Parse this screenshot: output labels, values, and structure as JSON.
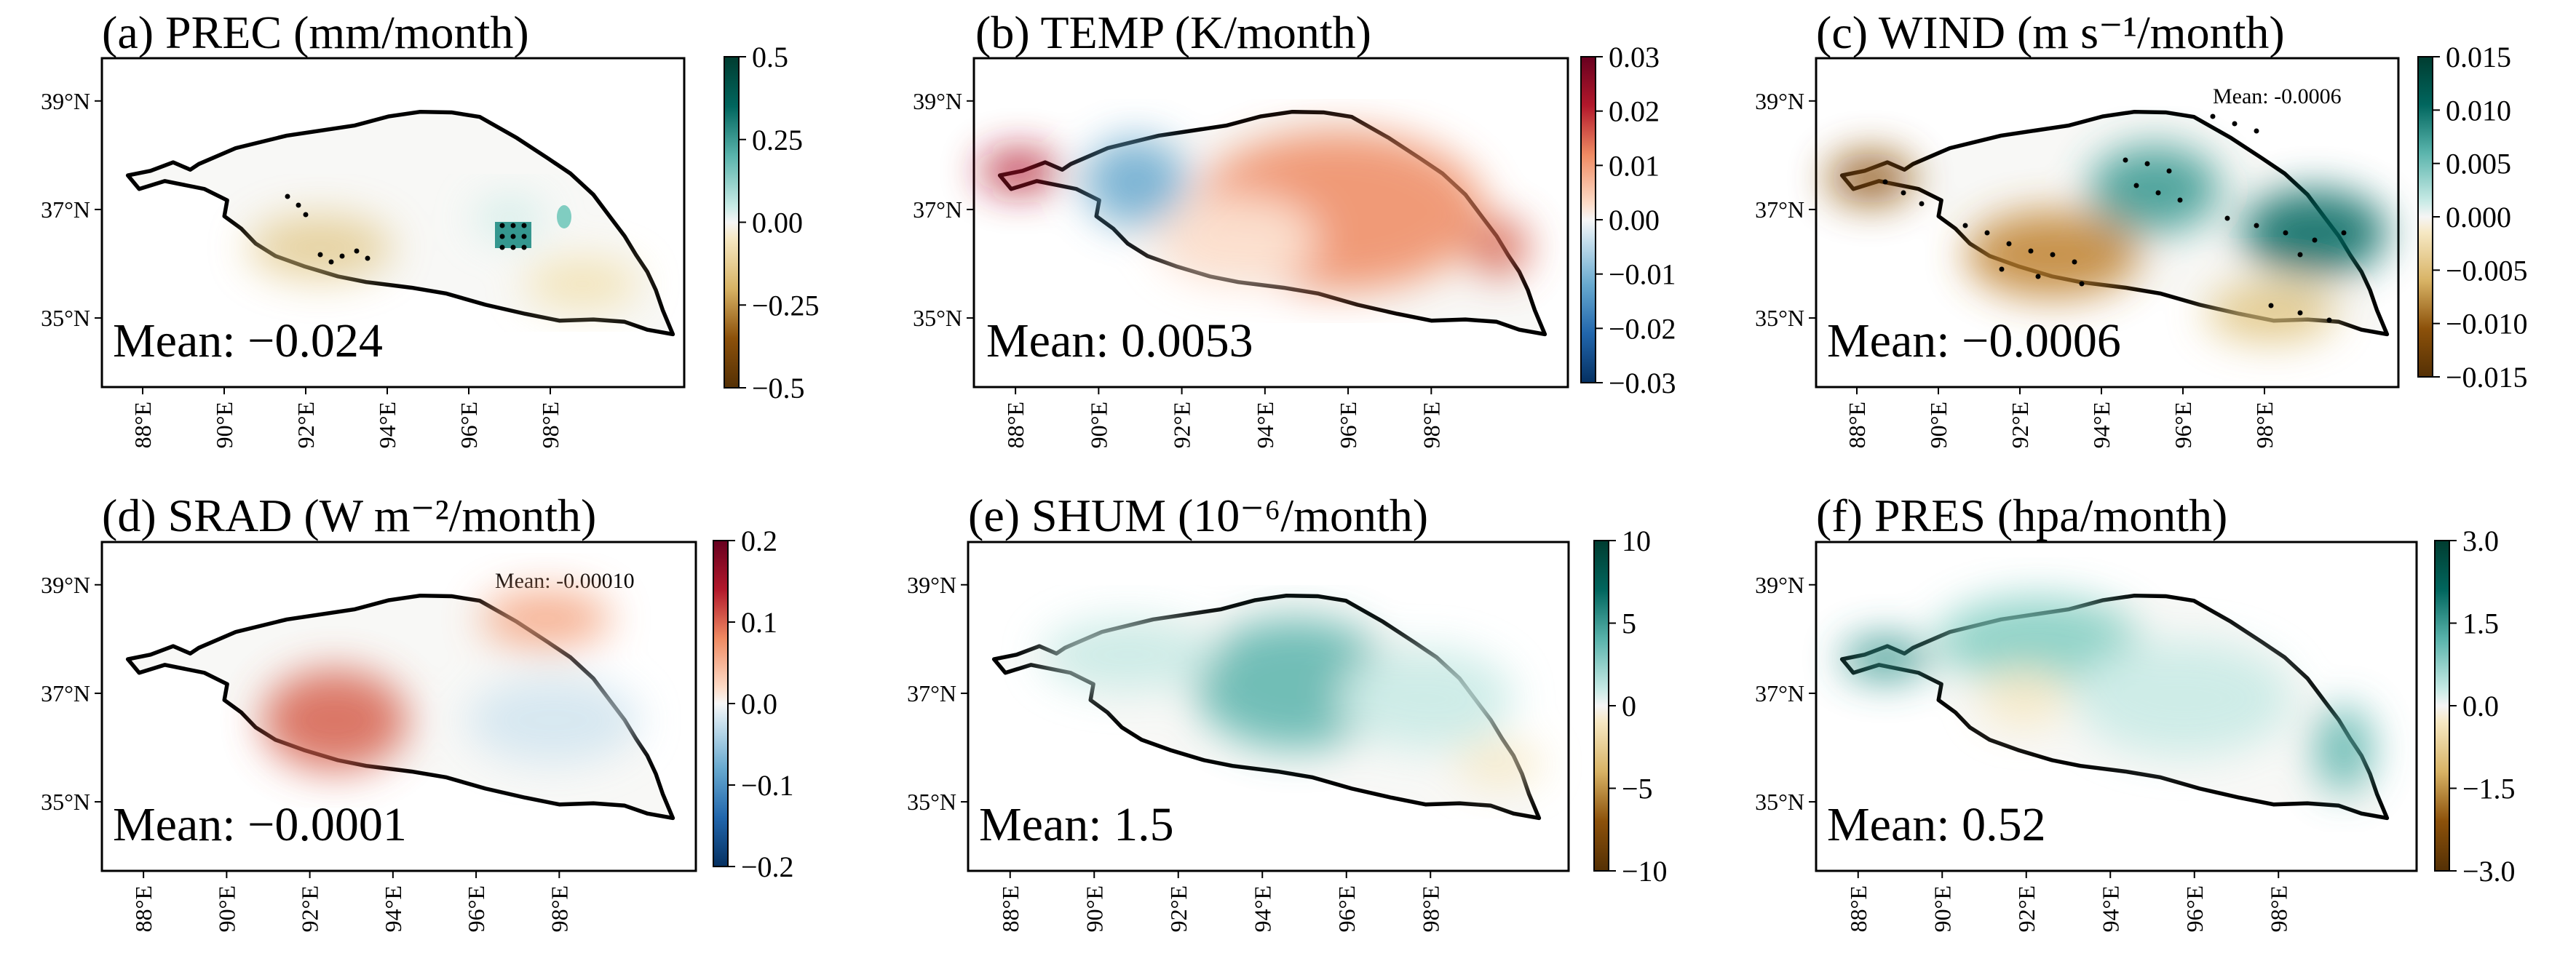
{
  "panels": [
    {
      "id": "a",
      "title": "(a) PREC (mm/month)",
      "mean_label": "Mean: −0.024",
      "mean_value": -0.024,
      "cmap": "BrBG",
      "colorbar_ticks": [
        "0.5",
        "0.25",
        "0.00",
        "−0.25",
        "−0.5"
      ],
      "clim": [
        -0.5,
        0.5
      ],
      "stipple": true,
      "annotation": null
    },
    {
      "id": "b",
      "title": "(b) TEMP (K/month)",
      "mean_label": "Mean: 0.0053",
      "mean_value": 0.0053,
      "cmap": "RdBu",
      "colorbar_ticks": [
        "0.03",
        "0.02",
        "0.01",
        "0.00",
        "−0.01",
        "−0.02",
        "−0.03"
      ],
      "clim": [
        -0.03,
        0.03
      ],
      "stipple": false,
      "annotation": null
    },
    {
      "id": "c",
      "title": "(c) WIND (m s⁻¹/month)",
      "mean_label": "Mean: −0.0006",
      "mean_value": -0.0006,
      "cmap": "BrBG",
      "colorbar_ticks": [
        "0.015",
        "0.010",
        "0.005",
        "0.000",
        "−0.005",
        "−0.010",
        "−0.015"
      ],
      "clim": [
        -0.015,
        0.015
      ],
      "stipple": true,
      "annotation": "Mean: -0.0006"
    },
    {
      "id": "d",
      "title": "(d) SRAD (W m⁻²/month)",
      "mean_label": "Mean: −0.0001",
      "mean_value": -0.0001,
      "cmap": "RdBu",
      "colorbar_ticks": [
        "0.2",
        "0.1",
        "0.0",
        "−0.1",
        "−0.2"
      ],
      "clim": [
        -0.2,
        0.2
      ],
      "stipple": false,
      "annotation": "Mean: -0.00010"
    },
    {
      "id": "e",
      "title": "(e) SHUM (10⁻⁶/month)",
      "mean_label": "Mean: 1.5",
      "mean_value": 1.5,
      "cmap": "BrBG",
      "colorbar_ticks": [
        "10",
        "5",
        "0",
        "−5",
        "−10"
      ],
      "clim": [
        -10,
        10
      ],
      "stipple": false,
      "annotation": null
    },
    {
      "id": "f",
      "title": "(f) PRES (hpa/month)",
      "mean_label": "Mean: 0.52",
      "mean_value": 0.52,
      "cmap": "BrBG",
      "colorbar_ticks": [
        "3.0",
        "1.5",
        "0.0",
        "−1.5",
        "−3.0"
      ],
      "clim": [
        -3,
        3
      ],
      "stipple": false,
      "annotation": null
    }
  ],
  "lat_ticks": [
    "39°N",
    "37°N",
    "35°N"
  ],
  "lon_ticks": [
    "88°E",
    "90°E",
    "92°E",
    "94°E",
    "96°E",
    "98°E"
  ],
  "colors": {
    "brown": "#8c510a",
    "teal": "#01665e",
    "red": "#b2182b",
    "blue": "#2166ac",
    "neutral": "#f7f7f7"
  }
}
